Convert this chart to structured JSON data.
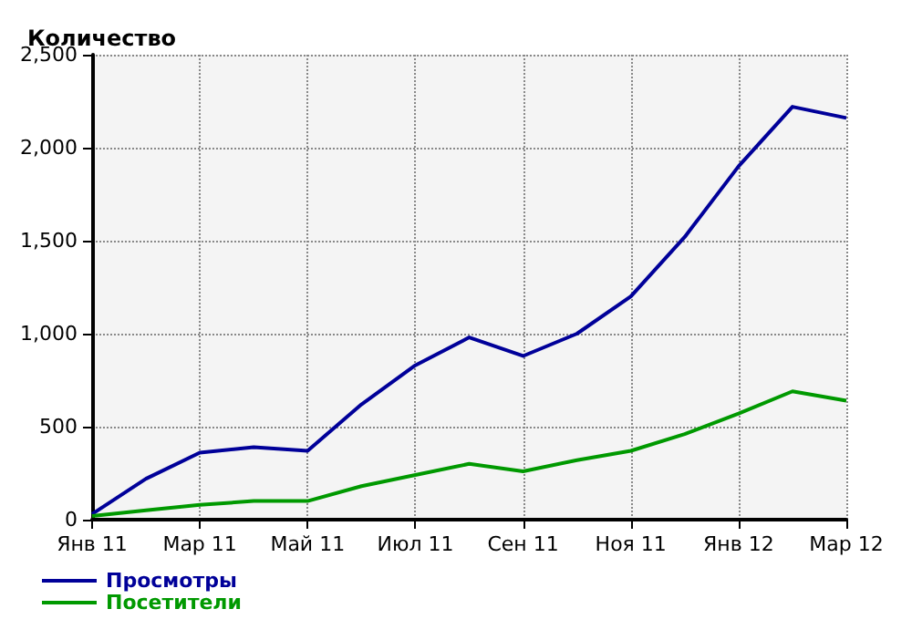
{
  "chart_data": {
    "type": "line",
    "ylabel": "Количество",
    "categories": [
      "Янв 11",
      null,
      "Мар 11",
      null,
      "Май 11",
      null,
      "Июл 11",
      null,
      "Сен 11",
      null,
      "Ноя 11",
      null,
      "Янв 12",
      null,
      "Мар 12"
    ],
    "series": [
      {
        "name": "Просмотры",
        "color": "#000099",
        "values": [
          30,
          220,
          360,
          390,
          370,
          620,
          830,
          980,
          880,
          1000,
          1200,
          1520,
          1900,
          2220,
          2160
        ]
      },
      {
        "name": "Посетители",
        "color": "#009900",
        "values": [
          20,
          50,
          80,
          100,
          100,
          180,
          240,
          300,
          260,
          320,
          370,
          460,
          570,
          690,
          640
        ]
      }
    ],
    "ylim": [
      0,
      2500
    ],
    "yticks": [
      0,
      500,
      {
        "value": 1000,
        "label": "1,000"
      },
      {
        "value": 1500,
        "label": "1,500"
      },
      {
        "value": 2000,
        "label": "2,000"
      },
      {
        "value": 2500,
        "label": "2,500"
      }
    ],
    "grid": true,
    "legend": "bottom left",
    "marker": "none",
    "line_style": "solid"
  }
}
